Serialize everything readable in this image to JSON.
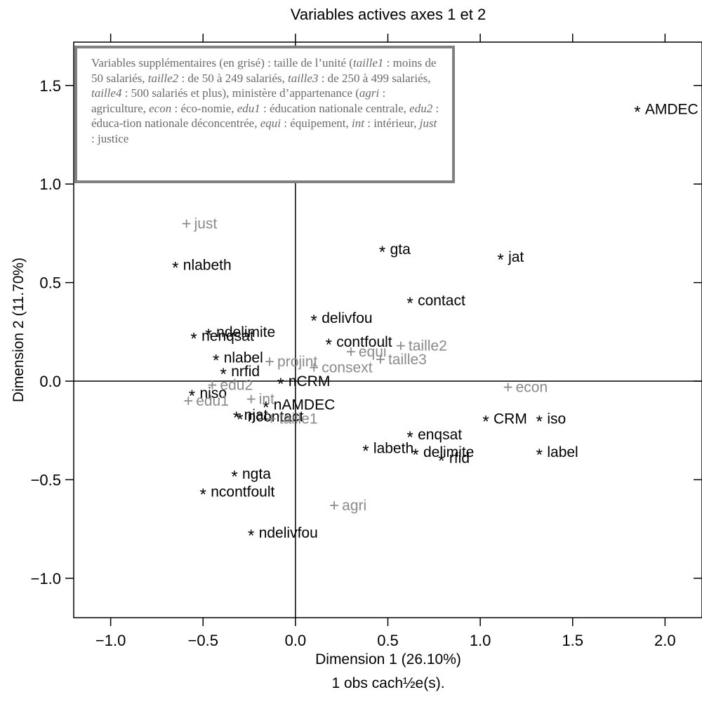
{
  "chart_data": {
    "type": "scatter",
    "title": "Variables actives axes 1 et 2",
    "xlabel": "Dimension 1 (26.10%)",
    "ylabel": "Dimension 2 (11.70%)",
    "footnote": "1 obs cach½e(s).",
    "xlim": [
      -1.2,
      2.2
    ],
    "ylim": [
      -1.2,
      1.72
    ],
    "x_ticks": [
      -1.0,
      -0.5,
      0.0,
      0.5,
      1.0,
      1.5,
      2.0
    ],
    "x_tick_labels": [
      "−1.0",
      "−0.5",
      "0.0",
      "0.5",
      "1.0",
      "1.5",
      "2.0"
    ],
    "y_ticks": [
      -1.0,
      -0.5,
      0.0,
      0.5,
      1.0,
      1.5
    ],
    "y_tick_labels": [
      "−1.0",
      "−0.5",
      "0.0",
      "0.5",
      "1.0",
      "1.5"
    ],
    "reference_lines": {
      "x": 0,
      "y": 0
    },
    "grid": false,
    "series": [
      {
        "name": "Variables actives",
        "marker": "*",
        "color": "#000000",
        "points": [
          {
            "label": "AMDEC",
            "x": 1.85,
            "y": 1.38
          },
          {
            "label": "jat",
            "x": 1.11,
            "y": 0.63
          },
          {
            "label": "gta",
            "x": 0.47,
            "y": 0.67
          },
          {
            "label": "nlabeth",
            "x": -0.65,
            "y": 0.59
          },
          {
            "label": "contact",
            "x": 0.62,
            "y": 0.41
          },
          {
            "label": "delivfou",
            "x": 0.1,
            "y": 0.32
          },
          {
            "label": "nenqsat",
            "x": -0.55,
            "y": 0.23
          },
          {
            "label": "ndelimite",
            "x": -0.47,
            "y": 0.25
          },
          {
            "label": "contfoult",
            "x": 0.18,
            "y": 0.2
          },
          {
            "label": "nlabel",
            "x": -0.43,
            "y": 0.12
          },
          {
            "label": "nrfid",
            "x": -0.39,
            "y": 0.05
          },
          {
            "label": "nCRM",
            "x": -0.08,
            "y": 0.0
          },
          {
            "label": "niso",
            "x": -0.56,
            "y": -0.06
          },
          {
            "label": "nAMDEC",
            "x": -0.16,
            "y": -0.12
          },
          {
            "label": "njat",
            "x": -0.32,
            "y": -0.17
          },
          {
            "label": "ncontact",
            "x": -0.3,
            "y": -0.18
          },
          {
            "label": "CRM",
            "x": 1.03,
            "y": -0.19
          },
          {
            "label": "iso",
            "x": 1.32,
            "y": -0.19
          },
          {
            "label": "enqsat",
            "x": 0.62,
            "y": -0.27
          },
          {
            "label": "labeth",
            "x": 0.38,
            "y": -0.34
          },
          {
            "label": "delimite",
            "x": 0.65,
            "y": -0.36
          },
          {
            "label": "rfid",
            "x": 0.79,
            "y": -0.39
          },
          {
            "label": "label",
            "x": 1.32,
            "y": -0.36
          },
          {
            "label": "ngta",
            "x": -0.33,
            "y": -0.47
          },
          {
            "label": "ncontfoult",
            "x": -0.5,
            "y": -0.56
          },
          {
            "label": "ndelivfou",
            "x": -0.24,
            "y": -0.77
          }
        ]
      },
      {
        "name": "Variables supplémentaires",
        "marker": "+",
        "color": "#8a8a8a",
        "points": [
          {
            "label": "just",
            "x": -0.59,
            "y": 0.8
          },
          {
            "label": "projint",
            "x": -0.14,
            "y": 0.1
          },
          {
            "label": "equi",
            "x": 0.3,
            "y": 0.15
          },
          {
            "label": "taille2",
            "x": 0.57,
            "y": 0.18
          },
          {
            "label": "taille3",
            "x": 0.46,
            "y": 0.11
          },
          {
            "label": "consext",
            "x": 0.1,
            "y": 0.07
          },
          {
            "label": "edu2",
            "x": -0.45,
            "y": -0.02
          },
          {
            "label": "int",
            "x": -0.24,
            "y": -0.09
          },
          {
            "label": "edu1",
            "x": -0.58,
            "y": -0.1
          },
          {
            "label": "econ",
            "x": 1.15,
            "y": -0.03
          },
          {
            "label": "taille1",
            "x": -0.13,
            "y": -0.19
          },
          {
            "label": "agri",
            "x": 0.21,
            "y": -0.63
          }
        ]
      }
    ]
  },
  "note": {
    "s1": "Variables supplémentaires (en grisé) : taille de l’unité (",
    "k1": "taille1",
    "s2": " : moins de 50 salariés, ",
    "k2": "taille2",
    "s3": " : de 50 à 249 salariés, ",
    "k3": "taille3",
    "s4": " : de 250 à 499 salariés, ",
    "k4": "taille4",
    "s5": " : 500 salariés et plus), ministère d’appartenance (",
    "k5": "agri",
    "s6": " : agriculture, ",
    "k6": "econ",
    "s7": " : éco-nomie, ",
    "k7": "edu1",
    "s8": " : éducation nationale centrale, ",
    "k8": "edu2",
    "s9": " : éduca-tion nationale déconcentrée, ",
    "k9": "equi",
    "s10": " : équipement, ",
    "k10": "int",
    "s11": " : intérieur, ",
    "k11": "just",
    "s12": " : justice"
  }
}
